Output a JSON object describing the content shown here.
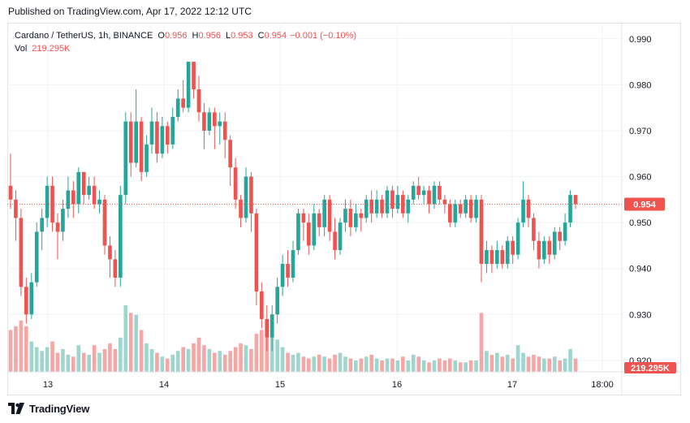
{
  "header": {
    "published": "Published on TradingView.com, Apr 17, 2022 12:12 UTC"
  },
  "legend": {
    "symbol": "Cardano / TetherUS, 1h, BINANCE",
    "open_label": "O",
    "open": "0.956",
    "high_label": "H",
    "high": "0.956",
    "low_label": "L",
    "low": "0.953",
    "close_label": "C",
    "close": "0.954",
    "change": "−0.001 (−0.10%)",
    "vol_label": "Vol",
    "vol": "219.295K"
  },
  "footer": {
    "brand": "TradingView"
  },
  "colors": {
    "up": "#26a69a",
    "down": "#ef5350",
    "up_vol": "#9ed6cf",
    "down_vol": "#f4a7a5"
  },
  "chart_data": {
    "type": "candlestick",
    "y_axis": {
      "ticks": [
        0.99,
        0.98,
        0.97,
        0.96,
        0.95,
        0.94,
        0.93,
        0.92
      ],
      "range": [
        0.9175,
        0.9935
      ],
      "position": "right"
    },
    "x_axis": {
      "ticks": [
        "13",
        "14",
        "15",
        "16",
        "17",
        "18:00"
      ]
    },
    "last_price": 0.954,
    "last_price_label": "0.954",
    "volume_label": "219.295K",
    "candles": [
      [
        0.958,
        0.955,
        0.965,
        0.953,
        22
      ],
      [
        0.955,
        0.951,
        0.957,
        0.946,
        24
      ],
      [
        0.951,
        0.936,
        0.953,
        0.934,
        27
      ],
      [
        0.936,
        0.93,
        0.938,
        0.928,
        24
      ],
      [
        0.93,
        0.937,
        0.939,
        0.929,
        16
      ],
      [
        0.937,
        0.948,
        0.95,
        0.936,
        13
      ],
      [
        0.948,
        0.951,
        0.953,
        0.944,
        11
      ],
      [
        0.951,
        0.958,
        0.96,
        0.949,
        13
      ],
      [
        0.958,
        0.95,
        0.96,
        0.948,
        16
      ],
      [
        0.95,
        0.948,
        0.952,
        0.942,
        10
      ],
      [
        0.948,
        0.953,
        0.955,
        0.946,
        12
      ],
      [
        0.953,
        0.957,
        0.96,
        0.951,
        9
      ],
      [
        0.957,
        0.954,
        0.959,
        0.951,
        8
      ],
      [
        0.954,
        0.961,
        0.962,
        0.952,
        14
      ],
      [
        0.961,
        0.956,
        0.961,
        0.954,
        10
      ],
      [
        0.956,
        0.958,
        0.96,
        0.955,
        9
      ],
      [
        0.958,
        0.954,
        0.96,
        0.953,
        14
      ],
      [
        0.954,
        0.955,
        0.957,
        0.952,
        10
      ],
      [
        0.955,
        0.945,
        0.956,
        0.943,
        12
      ],
      [
        0.945,
        0.942,
        0.947,
        0.938,
        15
      ],
      [
        0.942,
        0.938,
        0.944,
        0.936,
        12
      ],
      [
        0.938,
        0.956,
        0.958,
        0.936,
        18
      ],
      [
        0.956,
        0.972,
        0.974,
        0.954,
        35
      ],
      [
        0.972,
        0.963,
        0.974,
        0.96,
        31
      ],
      [
        0.963,
        0.972,
        0.979,
        0.962,
        30
      ],
      [
        0.972,
        0.961,
        0.973,
        0.959,
        22
      ],
      [
        0.961,
        0.967,
        0.969,
        0.96,
        15
      ],
      [
        0.967,
        0.972,
        0.975,
        0.965,
        12
      ],
      [
        0.972,
        0.965,
        0.974,
        0.963,
        10
      ],
      [
        0.965,
        0.971,
        0.973,
        0.964,
        8
      ],
      [
        0.971,
        0.967,
        0.972,
        0.965,
        7
      ],
      [
        0.967,
        0.973,
        0.975,
        0.966,
        9
      ],
      [
        0.973,
        0.977,
        0.979,
        0.972,
        11
      ],
      [
        0.977,
        0.975,
        0.981,
        0.974,
        13
      ],
      [
        0.975,
        0.985,
        0.985,
        0.974,
        12
      ],
      [
        0.985,
        0.979,
        0.985,
        0.977,
        15
      ],
      [
        0.979,
        0.974,
        0.982,
        0.972,
        18
      ],
      [
        0.974,
        0.97,
        0.976,
        0.966,
        14
      ],
      [
        0.97,
        0.974,
        0.975,
        0.969,
        12
      ],
      [
        0.974,
        0.971,
        0.975,
        0.966,
        10
      ],
      [
        0.971,
        0.972,
        0.974,
        0.967,
        11
      ],
      [
        0.972,
        0.968,
        0.974,
        0.964,
        9
      ],
      [
        0.968,
        0.962,
        0.969,
        0.958,
        11
      ],
      [
        0.962,
        0.955,
        0.964,
        0.953,
        13
      ],
      [
        0.955,
        0.951,
        0.956,
        0.949,
        15
      ],
      [
        0.951,
        0.96,
        0.962,
        0.95,
        14
      ],
      [
        0.96,
        0.952,
        0.961,
        0.948,
        12
      ],
      [
        0.952,
        0.935,
        0.953,
        0.932,
        20
      ],
      [
        0.935,
        0.929,
        0.937,
        0.927,
        22
      ],
      [
        0.929,
        0.925,
        0.932,
        0.922,
        27
      ],
      [
        0.925,
        0.93,
        0.932,
        0.922,
        21
      ],
      [
        0.93,
        0.936,
        0.938,
        0.928,
        17
      ],
      [
        0.936,
        0.941,
        0.943,
        0.934,
        13
      ],
      [
        0.941,
        0.938,
        0.944,
        0.936,
        10
      ],
      [
        0.938,
        0.944,
        0.946,
        0.937,
        9
      ],
      [
        0.944,
        0.952,
        0.953,
        0.943,
        10
      ],
      [
        0.952,
        0.95,
        0.953,
        0.946,
        8
      ],
      [
        0.95,
        0.945,
        0.952,
        0.943,
        7
      ],
      [
        0.945,
        0.952,
        0.954,
        0.944,
        8
      ],
      [
        0.952,
        0.949,
        0.953,
        0.947,
        9
      ],
      [
        0.949,
        0.955,
        0.956,
        0.947,
        8
      ],
      [
        0.955,
        0.948,
        0.956,
        0.946,
        7
      ],
      [
        0.948,
        0.944,
        0.951,
        0.942,
        9
      ],
      [
        0.944,
        0.95,
        0.951,
        0.943,
        10
      ],
      [
        0.95,
        0.953,
        0.955,
        0.948,
        8
      ],
      [
        0.953,
        0.949,
        0.955,
        0.947,
        7
      ],
      [
        0.949,
        0.952,
        0.954,
        0.948,
        6
      ],
      [
        0.952,
        0.951,
        0.953,
        0.948,
        7
      ],
      [
        0.951,
        0.955,
        0.956,
        0.95,
        8
      ],
      [
        0.955,
        0.952,
        0.957,
        0.95,
        9
      ],
      [
        0.952,
        0.955,
        0.957,
        0.951,
        7
      ],
      [
        0.955,
        0.952,
        0.956,
        0.951,
        6
      ],
      [
        0.952,
        0.957,
        0.958,
        0.951,
        7
      ],
      [
        0.957,
        0.953,
        0.958,
        0.951,
        7
      ],
      [
        0.953,
        0.956,
        0.958,
        0.952,
        6
      ],
      [
        0.956,
        0.952,
        0.957,
        0.951,
        8
      ],
      [
        0.952,
        0.955,
        0.956,
        0.95,
        6
      ],
      [
        0.955,
        0.958,
        0.959,
        0.954,
        9
      ],
      [
        0.958,
        0.956,
        0.96,
        0.955,
        8
      ],
      [
        0.956,
        0.957,
        0.958,
        0.954,
        6
      ],
      [
        0.957,
        0.954,
        0.958,
        0.952,
        5
      ],
      [
        0.954,
        0.958,
        0.959,
        0.953,
        6
      ],
      [
        0.958,
        0.955,
        0.959,
        0.954,
        7
      ],
      [
        0.955,
        0.954,
        0.956,
        0.952,
        6
      ],
      [
        0.954,
        0.95,
        0.955,
        0.949,
        7
      ],
      [
        0.95,
        0.954,
        0.955,
        0.949,
        6
      ],
      [
        0.954,
        0.952,
        0.955,
        0.951,
        5
      ],
      [
        0.952,
        0.955,
        0.956,
        0.951,
        5
      ],
      [
        0.955,
        0.951,
        0.956,
        0.95,
        6
      ],
      [
        0.951,
        0.955,
        0.956,
        0.95,
        6
      ],
      [
        0.955,
        0.941,
        0.956,
        0.937,
        31
      ],
      [
        0.941,
        0.944,
        0.946,
        0.939,
        11
      ],
      [
        0.944,
        0.941,
        0.945,
        0.939,
        9
      ],
      [
        0.941,
        0.944,
        0.946,
        0.94,
        10
      ],
      [
        0.944,
        0.941,
        0.945,
        0.94,
        8
      ],
      [
        0.941,
        0.946,
        0.947,
        0.94,
        9
      ],
      [
        0.946,
        0.943,
        0.947,
        0.941,
        7
      ],
      [
        0.943,
        0.95,
        0.951,
        0.942,
        14
      ],
      [
        0.95,
        0.955,
        0.959,
        0.949,
        10
      ],
      [
        0.955,
        0.951,
        0.956,
        0.949,
        8
      ],
      [
        0.951,
        0.946,
        0.952,
        0.944,
        9
      ],
      [
        0.946,
        0.942,
        0.948,
        0.94,
        8
      ],
      [
        0.942,
        0.946,
        0.947,
        0.941,
        7
      ],
      [
        0.946,
        0.943,
        0.947,
        0.941,
        7
      ],
      [
        0.943,
        0.948,
        0.949,
        0.942,
        8
      ],
      [
        0.948,
        0.946,
        0.949,
        0.944,
        6
      ],
      [
        0.946,
        0.95,
        0.952,
        0.945,
        7
      ],
      [
        0.95,
        0.956,
        0.957,
        0.949,
        12
      ],
      [
        0.956,
        0.954,
        0.956,
        0.953,
        7
      ]
    ]
  }
}
